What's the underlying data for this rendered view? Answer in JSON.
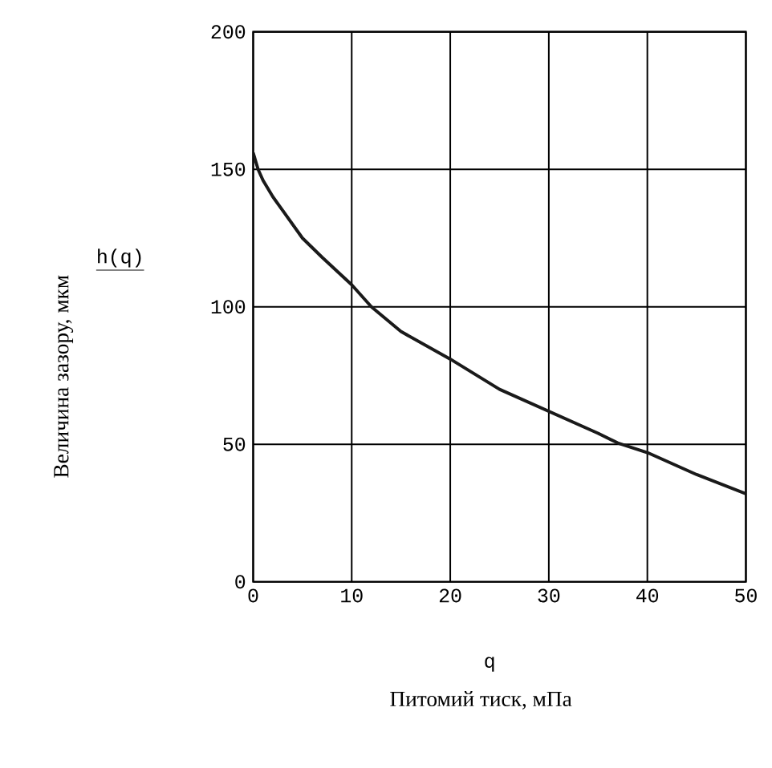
{
  "chart_data": {
    "type": "line",
    "xlabel": "q",
    "ylabel": "h(q)",
    "annotations": [
      "Величина зазору, мкм",
      "Питомий тиск, мПа"
    ],
    "x": [
      0,
      0.5,
      1,
      2,
      3,
      5,
      7,
      10,
      12,
      15,
      20,
      25,
      30,
      35,
      37,
      40,
      45,
      50
    ],
    "series": [
      {
        "color": "#1a1a1a",
        "values": [
          156,
          150,
          146,
          140,
          135,
          125,
          118,
          108,
          100,
          91,
          81,
          70,
          62,
          54,
          50.5,
          47,
          39,
          32
        ]
      }
    ],
    "xlim": [
      0,
      50
    ],
    "ylim": [
      0,
      200
    ],
    "xticks": [
      0,
      10,
      20,
      30,
      40,
      50
    ],
    "yticks": [
      0,
      50,
      100,
      150,
      200
    ],
    "grid": true,
    "marker": "none",
    "line_style": "solid"
  }
}
